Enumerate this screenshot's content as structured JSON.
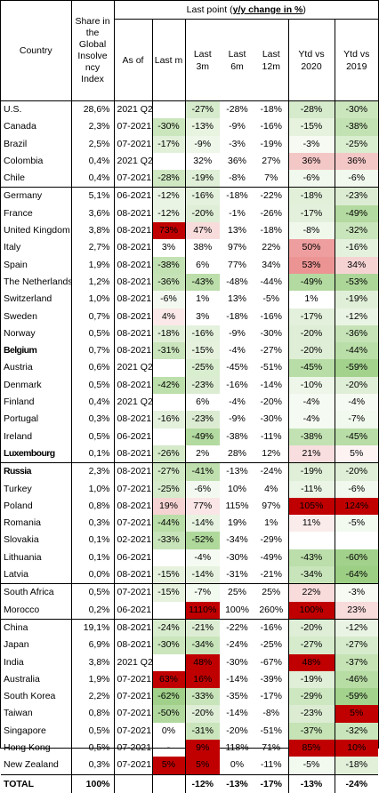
{
  "header": {
    "country": "Country",
    "share": "Share in the Global Insolve ncy Index",
    "last_point_prefix": "Last point (",
    "last_point_emph": "y/y change in %",
    "last_point_suffix": ")",
    "as_of": "As of",
    "last_m": "Last m",
    "last_3m": "Last 3m",
    "last_6m": "Last 6m",
    "last_12m": "Last 12m",
    "ytd_2020": "Ytd vs 2020",
    "ytd_2019": "Ytd vs 2019"
  },
  "groups": [
    {
      "rows": [
        {
          "country": "U.S.",
          "share": "28,6%",
          "asof": "2021 Q2",
          "m": "",
          "m3": "-27%",
          "m6": "-28%",
          "m12": "-18%",
          "y20": "-28%",
          "y19": "-30%",
          "c": {
            "m3": "#d6ebcc",
            "y20": "#d6ebcc",
            "y19": "#cbe6bd"
          }
        },
        {
          "country": "Canada",
          "share": "2,3%",
          "asof": "07-2021",
          "m": "-30%",
          "m3": "-13%",
          "m6": "-9%",
          "m12": "-16%",
          "y20": "-15%",
          "y19": "-38%",
          "c": {
            "m": "#cbe6bd",
            "m3": "#e8f3e0",
            "y20": "#e6f2de",
            "y19": "#c3e2b3"
          }
        },
        {
          "country": "Brazil",
          "share": "2,5%",
          "asof": "07-2021",
          "m": "-17%",
          "m3": "-9%",
          "m6": "-3%",
          "m12": "-19%",
          "y20": "-3%",
          "y19": "-25%",
          "c": {
            "m": "#e2f0da",
            "m3": "#eef7ea",
            "y20": "#f6faf3",
            "y19": "#d9edcf"
          }
        },
        {
          "country": "Colombia",
          "share": "0,4%",
          "asof": "2021 Q2",
          "m": "",
          "m3": "32%",
          "m6": "36%",
          "m12": "27%",
          "y20": "36%",
          "y19": "36%",
          "c": {
            "y20": "#f4c7c7",
            "y19": "#f4c7c7"
          }
        },
        {
          "country": "Chile",
          "share": "0,4%",
          "asof": "07-2021",
          "m": "-28%",
          "m3": "-19%",
          "m6": "-8%",
          "m12": "7%",
          "y20": "-6%",
          "y19": "-6%",
          "c": {
            "m": "#cfe8c2",
            "m3": "#e0efd7",
            "y20": "#f1f8ed",
            "y19": "#f1f8ed"
          }
        }
      ]
    },
    {
      "rows": [
        {
          "country": "Germany",
          "share": "5,1%",
          "asof": "06-2021",
          "m": "-12%",
          "m3": "-16%",
          "m6": "-18%",
          "m12": "-22%",
          "y20": "-18%",
          "y19": "-23%",
          "c": {
            "m": "#eaf4e4",
            "m3": "#e4f1dd",
            "y20": "#e2f0da",
            "y19": "#dcecd2"
          }
        },
        {
          "country": "France",
          "share": "3,6%",
          "asof": "08-2021",
          "m": "-12%",
          "m3": "-20%",
          "m6": "-1%",
          "m12": "-26%",
          "y20": "-17%",
          "y19": "-49%",
          "c": {
            "m": "#eaf4e4",
            "m3": "#dfeed6",
            "y20": "#e3f0db",
            "y19": "#b3daa0"
          }
        },
        {
          "country": "United Kingdom",
          "share": "3,8%",
          "asof": "08-2021",
          "m": "73%",
          "m3": "47%",
          "m6": "13%",
          "m12": "-18%",
          "y20": "-8%",
          "y19": "-32%",
          "c": {
            "m": "#c00000",
            "m3": "#f8dcdc",
            "y20": "#f0f8ec",
            "y19": "#c9e5bb"
          }
        },
        {
          "country": "Italy",
          "share": "2,7%",
          "asof": "08-2021",
          "m": "3%",
          "m3": "38%",
          "m6": "97%",
          "m12": "22%",
          "y20": "50%",
          "y19": "-16%",
          "c": {
            "y20": "#ee9e9e",
            "y19": "#e4f1dd"
          }
        },
        {
          "country": "Spain",
          "share": "1,9%",
          "asof": "08-2021",
          "m": "-38%",
          "m3": "6%",
          "m6": "77%",
          "m12": "34%",
          "y20": "53%",
          "y19": "34%",
          "c": {
            "m": "#c3e2b3",
            "y20": "#ec9494",
            "y19": "#f6d3d3"
          }
        },
        {
          "country": "The Netherlands",
          "share": "1,2%",
          "asof": "08-2021",
          "m": "-36%",
          "m3": "-43%",
          "m6": "-48%",
          "m12": "-44%",
          "y20": "-49%",
          "y19": "-53%",
          "c": {
            "m": "#c6e3b7",
            "m3": "#bbdeaa",
            "y20": "#b3daa0",
            "y19": "#acd698"
          }
        },
        {
          "country": "Switzerland",
          "share": "1,0%",
          "asof": "08-2021",
          "m": "-6%",
          "m3": "1%",
          "m6": "13%",
          "m12": "-5%",
          "y20": "1%",
          "y19": "-19%",
          "c": {
            "m": "#f3f9f0",
            "y19": "#e0efd7"
          }
        },
        {
          "country": "Sweden",
          "share": "0,7%",
          "asof": "08-2021",
          "m": "4%",
          "m3": "3%",
          "m6": "-18%",
          "m12": "-16%",
          "y20": "-17%",
          "y19": "-12%",
          "c": {
            "m": "#fbe9e9",
            "y20": "#e3f0db",
            "y19": "#eaf4e4"
          }
        },
        {
          "country": "Norway",
          "share": "0,5%",
          "asof": "08-2021",
          "m": "-18%",
          "m3": "-16%",
          "m6": "-9%",
          "m12": "-30%",
          "y20": "-20%",
          "y19": "-36%",
          "c": {
            "m": "#e1efd8",
            "m3": "#e4f1dd",
            "y20": "#dfeed6",
            "y19": "#c6e3b7"
          }
        },
        {
          "country": "Belgium",
          "share": "0,7%",
          "asof": "08-2021",
          "m": "-31%",
          "m3": "-15%",
          "m6": "-4%",
          "m12": "-27%",
          "y20": "-20%",
          "y19": "-44%",
          "bold": true,
          "c": {
            "m": "#cae5bc",
            "m3": "#e6f2de",
            "y20": "#dfeed6",
            "y19": "#badea8"
          }
        },
        {
          "country": "Austria",
          "share": "0,6%",
          "asof": "2021 Q2",
          "m": "",
          "m3": "-25%",
          "m6": "-45%",
          "m12": "-51%",
          "y20": "-45%",
          "y19": "-59%",
          "c": {
            "m3": "#d9edcf",
            "y20": "#b8dda6",
            "y19": "#a3d28d"
          }
        },
        {
          "country": "Denmark",
          "share": "0,5%",
          "asof": "08-2021",
          "m": "-42%",
          "m3": "-23%",
          "m6": "-16%",
          "m12": "-14%",
          "y20": "-10%",
          "y19": "-20%",
          "c": {
            "m": "#bcdfab",
            "m3": "#dcecd2",
            "y20": "#edf6e8",
            "y19": "#dfeed6"
          }
        },
        {
          "country": "Finland",
          "share": "0,4%",
          "asof": "2021 Q2",
          "m": "",
          "m3": "6%",
          "m6": "-4%",
          "m12": "-20%",
          "y20": "-4%",
          "y19": "-4%",
          "c": {
            "y20": "#f5faf2",
            "y19": "#f5faf2"
          }
        },
        {
          "country": "Portugal",
          "share": "0,3%",
          "asof": "08-2021",
          "m": "-16%",
          "m3": "-23%",
          "m6": "-9%",
          "m12": "-30%",
          "y20": "-4%",
          "y19": "-7%",
          "c": {
            "m": "#e4f1dd",
            "m3": "#dcecd2",
            "y20": "#f5faf2",
            "y19": "#f1f8ed"
          }
        },
        {
          "country": "Ireland",
          "share": "0,5%",
          "asof": "06-2021",
          "m": "",
          "m3": "-49%",
          "m6": "-38%",
          "m12": "-11%",
          "y20": "-38%",
          "y19": "-45%",
          "c": {
            "m3": "#b3daa0",
            "y20": "#c3e2b3",
            "y19": "#b8dda6"
          }
        },
        {
          "country": "Luxembourg",
          "share": "0,1%",
          "asof": "08-2021",
          "m": "-26%",
          "m3": "2%",
          "m6": "28%",
          "m12": "12%",
          "y20": "21%",
          "y19": "5%",
          "bold": true,
          "c": {
            "m": "#d4eac8",
            "y20": "#f8dede",
            "y19": "#fdf3f3"
          }
        }
      ]
    },
    {
      "rows": [
        {
          "country": "Russia",
          "share": "2,3%",
          "asof": "08-2021",
          "m": "-27%",
          "m3": "-41%",
          "m6": "-13%",
          "m12": "-24%",
          "y20": "-19%",
          "y19": "-20%",
          "bold": true,
          "c": {
            "m": "#d2e9c6",
            "m3": "#bfe0ae",
            "y20": "#e0efd7",
            "y19": "#dfeed6"
          }
        },
        {
          "country": "Turkey",
          "share": "1,0%",
          "asof": "07-2021",
          "m": "-25%",
          "m3": "-6%",
          "m6": "10%",
          "m12": "4%",
          "y20": "-11%",
          "y19": "-6%",
          "c": {
            "m": "#d6ebcc",
            "m3": "#f3f9f0",
            "y20": "#ebf5e6",
            "y19": "#f1f8ed"
          }
        },
        {
          "country": "Poland",
          "share": "0,8%",
          "asof": "08-2021",
          "m": "19%",
          "m3": "77%",
          "m6": "115%",
          "m12": "97%",
          "y20": "105%",
          "y19": "124%",
          "c": {
            "m": "#f6d3d3",
            "m3": "#fae6e6",
            "y20": "#c00000",
            "y19": "#c00000"
          }
        },
        {
          "country": "Romania",
          "share": "0,3%",
          "asof": "07-2021",
          "m": "-44%",
          "m3": "-14%",
          "m6": "19%",
          "m12": "1%",
          "y20": "11%",
          "y19": "-5%",
          "c": {
            "m": "#badea8",
            "m3": "#e7f3e0",
            "y20": "#fbecec",
            "y19": "#f2f9ef"
          }
        },
        {
          "country": "Slovakia",
          "share": "0,1%",
          "asof": "02-2021",
          "m": "-33%",
          "m3": "-52%",
          "m6": "-34%",
          "m12": "-29%",
          "y20": "",
          "y19": "",
          "c": {
            "m": "#c8e4ba",
            "m3": "#afd89b"
          }
        },
        {
          "country": "Lithuania",
          "share": "0,1%",
          "asof": "06-2021",
          "m": "",
          "m3": "-4%",
          "m6": "-30%",
          "m12": "-49%",
          "y20": "-43%",
          "y19": "-60%",
          "c": {
            "m3": "#f5faf2",
            "y20": "#bbdeaa",
            "y19": "#a2d18b"
          }
        },
        {
          "country": "Latvia",
          "share": "0,0%",
          "asof": "08-2021",
          "m": "-15%",
          "m3": "-14%",
          "m6": "-31%",
          "m12": "-21%",
          "y20": "-34%",
          "y19": "-64%",
          "c": {
            "m": "#e6f2de",
            "m3": "#e7f3e0",
            "y20": "#c8e4ba",
            "y19": "#9ccf84"
          }
        }
      ]
    },
    {
      "rows": [
        {
          "country": "South Africa",
          "share": "0,5%",
          "asof": "07-2021",
          "m": "-15%",
          "m3": "-7%",
          "m6": "25%",
          "m12": "25%",
          "y20": "22%",
          "y19": "-3%",
          "c": {
            "m": "#e6f2de",
            "m3": "#f2f9ef",
            "y20": "#f8dcdc",
            "y19": "#f6faf3"
          }
        },
        {
          "country": "Morocco",
          "share": "0,2%",
          "asof": "06-2021",
          "m": "",
          "m3": "1110%",
          "m6": "100%",
          "m12": "260%",
          "y20": "100%",
          "y19": "23%",
          "c": {
            "m3": "#c00000",
            "y20": "#c00000",
            "y19": "#f8dbdb"
          }
        }
      ]
    },
    {
      "rows": [
        {
          "country": "China",
          "share": "19,1%",
          "asof": "08-2021",
          "m": "-24%",
          "m3": "-21%",
          "m6": "-22%",
          "m12": "-16%",
          "y20": "-20%",
          "y19": "-12%",
          "c": {
            "m": "#d8ecce",
            "m3": "#ddedd4",
            "y20": "#dfeed6",
            "y19": "#eaf4e4"
          }
        },
        {
          "country": "Japan",
          "share": "6,9%",
          "asof": "08-2021",
          "m": "-30%",
          "m3": "-34%",
          "m6": "-24%",
          "m12": "-25%",
          "y20": "-27%",
          "y19": "-27%",
          "c": {
            "m": "#cbe6bd",
            "m3": "#c8e4ba",
            "y20": "#d6ebcc",
            "y19": "#d6ebcc"
          }
        },
        {
          "country": "India",
          "share": "3,8%",
          "asof": "2021 Q2",
          "m": "",
          "m3": "48%",
          "m6": "-30%",
          "m12": "-67%",
          "y20": "48%",
          "y19": "-37%",
          "c": {
            "m3": "#c00000",
            "y20": "#c00000",
            "y19": "#c5e3b5"
          }
        },
        {
          "country": "Australia",
          "share": "1,9%",
          "asof": "07-2021",
          "m": "63%",
          "m3": "16%",
          "m6": "-14%",
          "m12": "-39%",
          "y20": "-19%",
          "y19": "-46%",
          "c": {
            "m": "#c00000",
            "m3": "#c00000",
            "y20": "#e0efd7",
            "y19": "#b7dca4"
          }
        },
        {
          "country": "South Korea",
          "share": "2,2%",
          "asof": "07-2021",
          "m": "-62%",
          "m3": "-33%",
          "m6": "-35%",
          "m12": "-17%",
          "y20": "-29%",
          "y19": "-59%",
          "c": {
            "m": "#a0d089",
            "m3": "#c8e4ba",
            "y20": "#cde7c0",
            "y19": "#a3d28d"
          }
        },
        {
          "country": "Taiwan",
          "share": "0,8%",
          "asof": "07-2021",
          "m": "-50%",
          "m3": "-20%",
          "m6": "-14%",
          "m12": "-8%",
          "y20": "-23%",
          "y19": "5%",
          "c": {
            "m": "#b1d99e",
            "m3": "#dfeed6",
            "y20": "#dcecd2",
            "y19": "#c00000"
          }
        },
        {
          "country": "Singapore",
          "share": "0,5%",
          "asof": "07-2021",
          "m": "0%",
          "m3": "-31%",
          "m6": "-20%",
          "m12": "-51%",
          "y20": "-37%",
          "y19": "-32%",
          "c": {
            "m3": "#cae5bc",
            "y20": "#c5e3b5",
            "y19": "#c9e5bb"
          }
        },
        {
          "country": "Hong Kong",
          "share": "0,5%",
          "asof": "07-2021",
          "m": "-",
          "m3": "9%",
          "m6": "118%",
          "m12": "71%",
          "y20": "85%",
          "y19": "10%",
          "c": {
            "m3": "#c00000",
            "y20": "#c00000",
            "y19": "#c00000"
          }
        },
        {
          "country": "New Zealand",
          "share": "0,3%",
          "asof": "07-2021",
          "m": "5%",
          "m3": "5%",
          "m6": "0%",
          "m12": "-11%",
          "y20": "-5%",
          "y19": "-18%",
          "c": {
            "m": "#c00000",
            "m3": "#c00000",
            "y20": "#f2f9ef",
            "y19": "#e2f0da"
          }
        }
      ]
    }
  ],
  "total": {
    "country": "TOTAL",
    "share": "100%",
    "asof": "",
    "m": "",
    "m3": "-12%",
    "m6": "-13%",
    "m12": "-17%",
    "y20": "-13%",
    "y19": "-24%"
  }
}
